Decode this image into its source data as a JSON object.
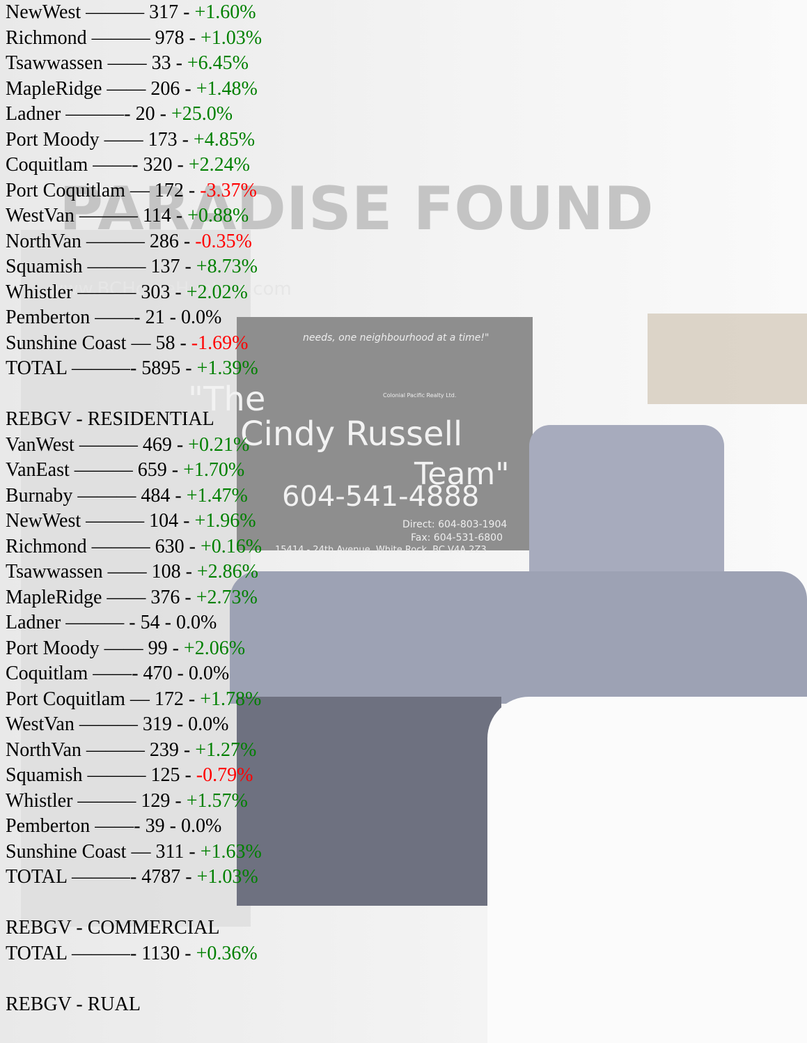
{
  "background": {
    "brand": "PARADISE FOUND",
    "website": "www.BCHomeHunters.com",
    "slogan": "needs, one neighbourhood at a time!\"",
    "brokerage": "Colonial Pacific Realty Ltd.",
    "team_line1": "\"The",
    "team_line2": "Cindy Russell",
    "team_line3": "Team\"",
    "phone": "604-541-4888",
    "direct": "Direct: 604-803-1904",
    "fax": "Fax: 604-531-6800",
    "address": "15414 - 24th Avenue, White Rock, BC V4A 2Z3"
  },
  "sections": [
    {
      "lines": [
        {
          "text": "NewWest ——— 317 -",
          "change": "+1.60%",
          "color": "#008000"
        },
        {
          "text": "Richmond ——— 978 -",
          "change": "+1.03%",
          "color": "#008000"
        },
        {
          "text": "Tsawwassen —— 33 -",
          "change": "+6.45%",
          "color": "#008000"
        },
        {
          "text": "MapleRidge —— 206 -",
          "change": "+1.48%",
          "color": "#008000"
        },
        {
          "text": "Ladner ———- 20 -",
          "change": "+25.0%",
          "color": "#008000"
        },
        {
          "text": "Port Moody —— 173 -",
          "change": "+4.85%",
          "color": "#008000"
        },
        {
          "text": "Coquitlam ——- 320 -",
          "change": "+2.24%",
          "color": "#008000"
        },
        {
          "text": "Port Coquitlam — 172 -",
          "change": "-3.37%",
          "color": "#ff0000"
        },
        {
          "text": "WestVan ——— 114 -",
          "change": "+0.88%",
          "color": "#008000"
        },
        {
          "text": "NorthVan ——— 286 -",
          "change": "-0.35%",
          "color": "#ff0000"
        },
        {
          "text": "Squamish ——— 137 -",
          "change": "+8.73%",
          "color": "#008000"
        },
        {
          "text": "Whistler ——— 303 -",
          "change": "+2.02%",
          "color": "#008000"
        },
        {
          "text": "Pemberton ——- 21 -",
          "change": "0.0%",
          "color": "#000000"
        },
        {
          "text": "Sunshine Coast — 58 -",
          "change": "-1.69%",
          "color": "#ff0000"
        },
        {
          "text": "TOTAL ———- 5895 -",
          "change": "+1.39%",
          "color": "#008000"
        }
      ]
    },
    {
      "heading": "REBGV - RESIDENTIAL",
      "lines": [
        {
          "text": "VanWest ——— 469 -",
          "change": "+0.21%",
          "color": "#008000"
        },
        {
          "text": "VanEast ——— 659 -",
          "change": "+1.70%",
          "color": "#008000"
        },
        {
          "text": "Burnaby ——— 484 -",
          "change": "+1.47%",
          "color": "#008000"
        },
        {
          "text": "NewWest ——— 104 -",
          "change": "+1.96%",
          "color": "#008000"
        },
        {
          "text": "Richmond ——— 630 -",
          "change": "+0.16%",
          "color": "#008000"
        },
        {
          "text": "Tsawwassen —— 108 -",
          "change": "+2.86%",
          "color": "#008000"
        },
        {
          "text": "MapleRidge —— 376 -",
          "change": "+2.73%",
          "color": "#008000"
        },
        {
          "text": "Ladner ——— - 54 -",
          "change": "0.0%",
          "color": "#000000"
        },
        {
          "text": "Port Moody —— 99 -",
          "change": "+2.06%",
          "color": "#008000"
        },
        {
          "text": "Coquitlam ——- 470 -",
          "change": "0.0%",
          "color": "#000000"
        },
        {
          "text": "Port Coquitlam — 172 -",
          "change": "+1.78%",
          "color": "#008000"
        },
        {
          "text": "WestVan ——— 319 -",
          "change": "0.0%",
          "color": "#000000"
        },
        {
          "text": "NorthVan ——— 239 -",
          "change": "+1.27%",
          "color": "#008000"
        },
        {
          "text": "Squamish ——— 125 -",
          "change": "-0.79%",
          "color": "#ff0000"
        },
        {
          "text": "Whistler ——— 129 -",
          "change": "+1.57%",
          "color": "#008000"
        },
        {
          "text": "Pemberton ——- 39 -",
          "change": "0.0%",
          "color": "#000000"
        },
        {
          "text": "Sunshine Coast — 311 -",
          "change": "+1.63%",
          "color": "#008000"
        },
        {
          "text": "TOTAL ———- 4787 -",
          "change": "+1.03%",
          "color": "#008000"
        }
      ]
    },
    {
      "heading": "REBGV - COMMERCIAL",
      "lines": [
        {
          "text": "TOTAL ———- 1130 -",
          "change": "+0.36%",
          "color": "#008000"
        }
      ]
    },
    {
      "heading": "REBGV - RUAL",
      "lines": []
    }
  ]
}
